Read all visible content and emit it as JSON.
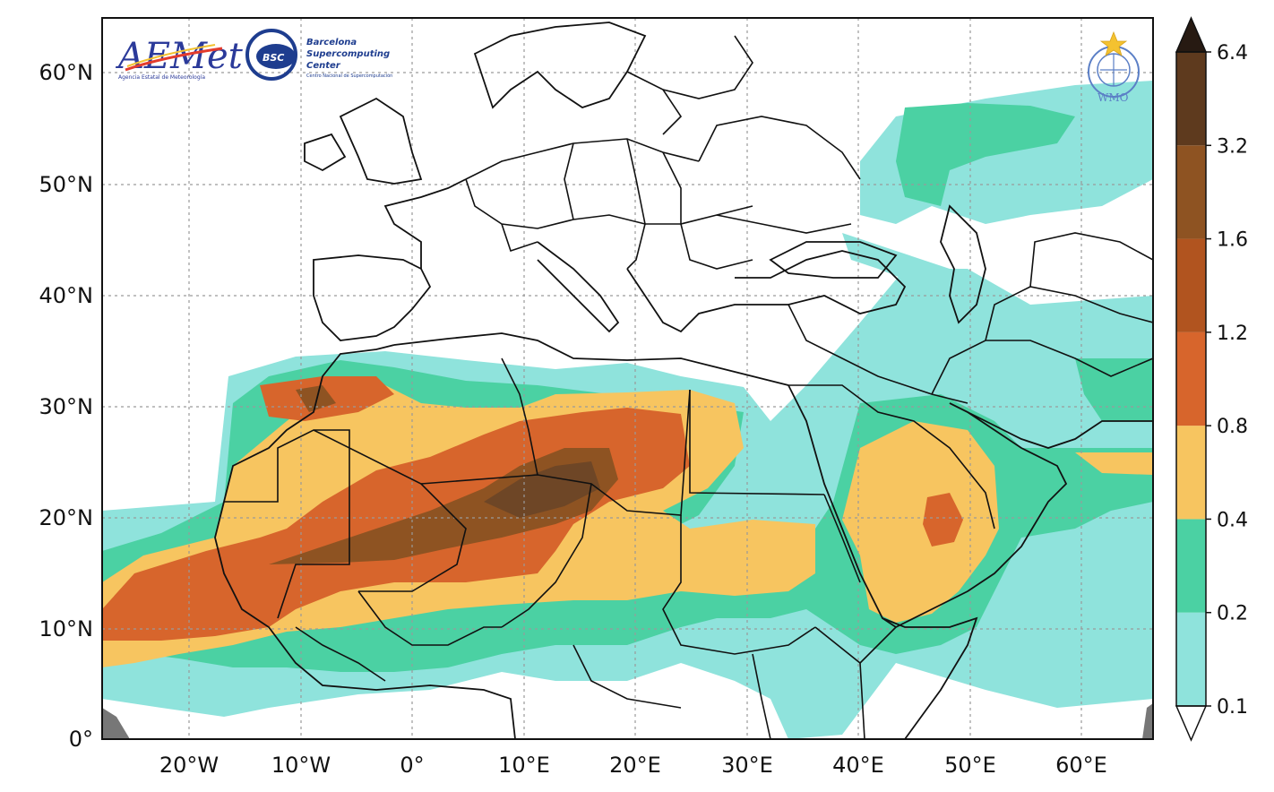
{
  "map": {
    "lat_labels": [
      "60°N",
      "50°N",
      "40°N",
      "30°N",
      "20°N",
      "10°N",
      "0°"
    ],
    "lon_labels": [
      "20°W",
      "10°W",
      "0°",
      "10°E",
      "20°E",
      "30°E",
      "40°E",
      "50°E",
      "60°E"
    ]
  },
  "colorbar": {
    "levels": [
      "0.1",
      "0.2",
      "0.4",
      "0.8",
      "1.2",
      "1.6",
      "3.2",
      "6.4"
    ],
    "colors": [
      "#8fe3dc",
      "#4bd1a3",
      "#f7c560",
      "#d7652c",
      "#b1541f",
      "#8e5322",
      "#5e3a1e",
      "#38261a"
    ],
    "extend_max_color": "#271a12",
    "extend_min_color": "#ffffff"
  },
  "logos": {
    "aemet": {
      "text": "AEMet",
      "subtext": "Agencia Estatal de Meteorología"
    },
    "bsc": {
      "badge": "BSC",
      "line1": "Barcelona",
      "line2": "Supercomputing",
      "line3": "Center",
      "subtext": "Centro Nacional de Supercomputación"
    },
    "wmo": {
      "text": "WMO"
    }
  }
}
